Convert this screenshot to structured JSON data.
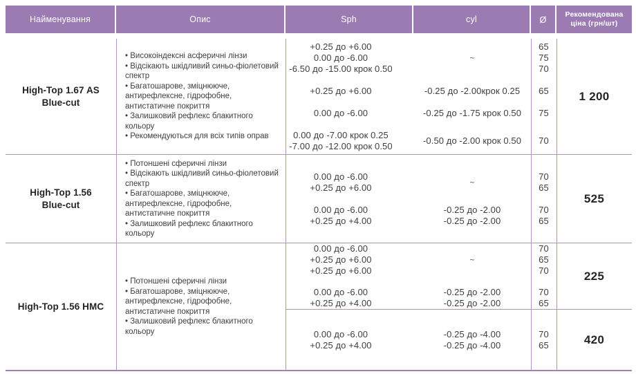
{
  "header": {
    "name": "Найменування",
    "desc": "Опис",
    "sph": "Sph",
    "cyl": "cyl",
    "dia": "Ø",
    "price": "Рекомендована ціна (грн/шт)"
  },
  "colors": {
    "header_bg": "#9c7bb3",
    "header_text": "#ffffff",
    "grid_line": "#b191c5",
    "bottom_line": "#a383ba",
    "body_text": "#3e3e3e",
    "strong_text": "#242424"
  },
  "rows": [
    {
      "name_line1": "High-Top 1.67 AS",
      "name_line2": "Blue-cut",
      "desc": [
        "• Високоіндексні асферичні лінзи",
        "• Відсікають шкідливий синьо-фіолетовий спектр",
        "• Багатошарове, зміцнююче, антирефлексне, гідрофобне, антистатичне покриття",
        "• Залишковий рефлекс блакитного кольору",
        "• Рекомендуються для всіх типів оправ"
      ],
      "sections": [
        {
          "price": "1 200",
          "groups": [
            {
              "sph": [
                "+0.25 до +6.00",
                "0.00 до -6.00",
                "-6.50 до -15.00 крок 0.50"
              ],
              "cyl": [
                "~"
              ],
              "dia": [
                "65",
                "75",
                "70"
              ]
            },
            {
              "sph": [
                "+0.25 до +6.00"
              ],
              "cyl": [
                "-0.25 до -2.00крок 0.25"
              ],
              "dia": [
                "65"
              ]
            },
            {
              "sph": [
                "0.00 до -6.00"
              ],
              "cyl": [
                "-0.25 до -1.75 крок 0.50"
              ],
              "dia": [
                "75"
              ]
            },
            {
              "sph": [
                "0.00 до -7.00 крок 0.25",
                "-7.00 до -12.00 крок 0.50"
              ],
              "cyl": [
                "-0.50 до -2.00 крок 0.50"
              ],
              "dia": [
                "70"
              ]
            }
          ]
        }
      ]
    },
    {
      "name_line1": "High-Top 1.56",
      "name_line2": "Blue-cut",
      "desc": [
        "• Потоншені сферичні лінзи",
        "• Відсікають шкідливий синьо-фіолетовий спектр",
        "• Багатошарове, зміцнююче, антирефлексне, гідрофобне, антистатичне покриття",
        "• Залишковий рефлекс блакитного кольору"
      ],
      "sections": [
        {
          "price": "525",
          "groups": [
            {
              "sph": [
                "0.00 до -6.00",
                "+0.25 до +6.00"
              ],
              "cyl": [
                "~"
              ],
              "dia": [
                "70",
                "65"
              ]
            },
            {
              "sph": [
                "0.00 до -6.00",
                "+0.25 до +4.00"
              ],
              "cyl": [
                "-0.25 до -2.00",
                "-0.25 до -2.00"
              ],
              "dia": [
                "70",
                "65"
              ]
            }
          ]
        }
      ]
    },
    {
      "name_line1": "High-Top 1.56 HMC",
      "name_line2": "",
      "desc": [
        "• Потоншені сферичні лінзи",
        "• Багатошарове, зміцнююче, антирефлексне, гідрофобне, антистатичне покриття",
        "• Залишковий рефлекс блакитного кольору"
      ],
      "sections": [
        {
          "price": "225",
          "groups": [
            {
              "sph": [
                "0.00 до -6.00",
                "+0.25 до +6.00",
                "+0.25 до +6.00"
              ],
              "cyl": [
                "~"
              ],
              "dia": [
                "70",
                "65",
                "70"
              ]
            },
            {
              "sph": [
                "0.00 до -6.00",
                "+0.25 до +4.00"
              ],
              "cyl": [
                "-0.25 до -2.00",
                "-0.25 до -2.00"
              ],
              "dia": [
                "70",
                "65"
              ]
            }
          ]
        },
        {
          "price": "420",
          "groups": [
            {
              "sph": [
                "0.00 до -6.00",
                "+0.25 до +4.00"
              ],
              "cyl": [
                "-0.25 до -4.00",
                "-0.25 до -4.00"
              ],
              "dia": [
                "70",
                "65"
              ]
            }
          ]
        }
      ]
    }
  ]
}
